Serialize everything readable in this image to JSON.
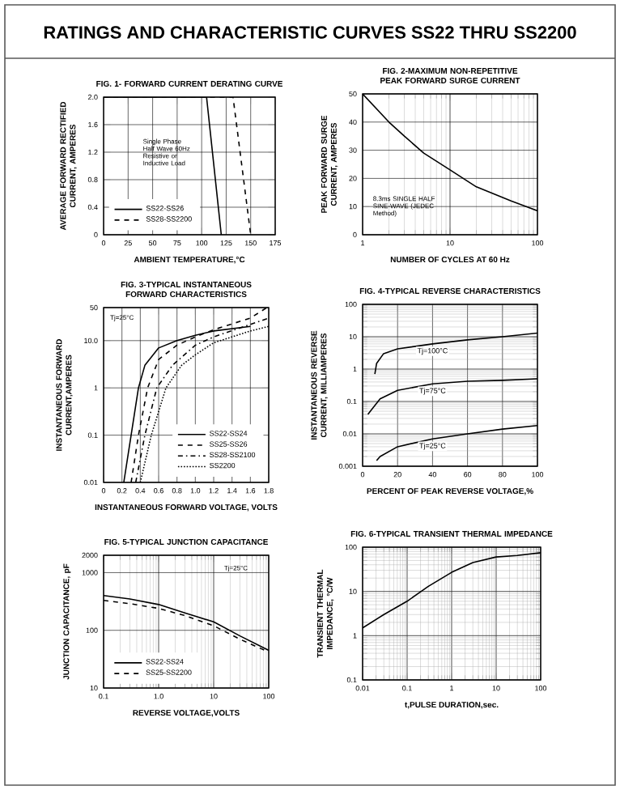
{
  "chart_data": [
    {
      "type": "line",
      "title": "FIG. 1- FORWARD CURRENT DERATING CURVE",
      "xlabel": "AMBIENT TEMPERATURE,°C",
      "ylabel": "AVERAGE FORWARD RECTIFIED CURRENT, AMPERES",
      "xlim": [
        0,
        175
      ],
      "xticks": [
        0,
        25,
        50,
        75,
        100,
        125,
        150,
        175
      ],
      "ylim": [
        0,
        2.0
      ],
      "yticks": [
        0,
        0.4,
        0.8,
        1.2,
        1.6,
        {
          "value": 2.0,
          "label": "2.0"
        }
      ],
      "grid": true,
      "legend": "bottom left",
      "annotations": [
        "RATINGS AND CHARACTERISTIC CURVES SS22 THRU SS2200",
        "Single Phase Half Wave 60Hz Resistive or Inductive Load"
      ],
      "series": [
        {
          "name": "SS22-SS26",
          "color": "#000000",
          "line_style": "solid",
          "x": [
            0,
            105,
            120
          ],
          "values": [
            2.0,
            2.0,
            0
          ]
        },
        {
          "name": "SS28-SS2200",
          "color": "#000000",
          "line_style": "dashed",
          "x": [
            0,
            132,
            150
          ],
          "values": [
            2.0,
            2.0,
            0
          ]
        }
      ]
    },
    {
      "type": "line",
      "title": "FIG. 2-MAXIMUM NON-REPETITIVE PEAK FORWARD SURGE CURRENT",
      "xlabel": "NUMBER OF CYCLES AT 60 Hz",
      "ylabel": "PEAK FORWARD SURGE CURRENT, AMPERES",
      "log": "x",
      "xlim": [
        1,
        100
      ],
      "xticks": [
        1,
        10,
        100
      ],
      "ylim": [
        0,
        50
      ],
      "yticks": [
        0,
        10,
        20,
        30,
        40,
        50
      ],
      "grid": true,
      "annotations": [
        "8.3ms SINGLE HALF SINE-WAVE (JEDEC Method)"
      ],
      "series": [
        {
          "color": "#000000",
          "line_style": "solid",
          "x": [
            1,
            2,
            3,
            5,
            10,
            20,
            50,
            100
          ],
          "values": [
            50,
            40,
            35,
            29,
            23,
            17,
            12,
            8.5
          ]
        }
      ]
    },
    {
      "type": "line",
      "title": "FIG. 3-TYPICAL INSTANTANEOUS FORWARD CHARACTERISTICS",
      "xlabel": "INSTANTANEOUS FORWARD VOLTAGE, VOLTS",
      "ylabel": "INSTANTANEOUS FORWARD CURRENT,AMPERES",
      "log": "y",
      "xlim": [
        0,
        1.8
      ],
      "xticks": [
        0,
        0.2,
        0.4,
        0.6,
        0.8,
        {
          "value": 1,
          "label": "1.0"
        },
        1.2,
        1.4,
        1.6,
        1.8
      ],
      "ylim": [
        0.01,
        50
      ],
      "yticks": [
        0.01,
        0.1,
        1,
        {
          "value": 10,
          "label": "10.0"
        },
        50
      ],
      "grid": true,
      "legend": "bottom right",
      "annotations": [
        "Tj=25°C"
      ],
      "series": [
        {
          "name": "SS22-SS24",
          "color": "#000000",
          "line_style": "solid",
          "x": [
            0.22,
            0.3,
            0.38,
            0.45,
            0.6,
            0.8,
            1.0,
            1.2,
            1.6
          ],
          "values": [
            0.01,
            0.1,
            1,
            3,
            7,
            10,
            13,
            16,
            20
          ]
        },
        {
          "name": "SS25-SS26",
          "color": "#000000",
          "line_style": "dashed",
          "x": [
            0.3,
            0.38,
            0.48,
            0.6,
            0.8,
            1.0,
            1.2,
            1.6,
            1.78
          ],
          "values": [
            0.01,
            0.1,
            1,
            4,
            8,
            12,
            17,
            30,
            50
          ]
        },
        {
          "name": "SS28-SS2100",
          "color": "#000000",
          "line_style": "dashdot",
          "x": [
            0.35,
            0.45,
            0.58,
            0.75,
            1.0,
            1.2,
            1.6,
            1.8
          ],
          "values": [
            0.01,
            0.1,
            1,
            3,
            8,
            12,
            22,
            30
          ]
        },
        {
          "name": "SS2200",
          "color": "#000000",
          "line_style": "dotted",
          "x": [
            0.4,
            0.52,
            0.68,
            0.85,
            1.0,
            1.2,
            1.6,
            1.8
          ],
          "values": [
            0.01,
            0.1,
            1,
            3,
            5,
            9,
            16,
            20
          ]
        }
      ]
    },
    {
      "type": "line",
      "title": "FIG. 4-TYPICAL REVERSE CHARACTERISTICS",
      "xlabel": "PERCENT OF PEAK REVERSE VOLTAGE,%",
      "ylabel": "INSTANTANEOUS REVERSE CURRENT, MILLIAMPERES",
      "log": "y",
      "xlim": [
        0,
        100
      ],
      "xticks": [
        0,
        20,
        40,
        60,
        80,
        100
      ],
      "ylim": [
        0.001,
        100
      ],
      "yticks": [
        0.001,
        0.01,
        0.1,
        1,
        10,
        100
      ],
      "grid": true,
      "series": [
        {
          "name": "Tj=100°C",
          "color": "#000000",
          "line_style": "solid",
          "x": [
            7,
            8,
            12,
            20,
            40,
            60,
            80,
            100
          ],
          "values": [
            0.7,
            1.5,
            3,
            4.2,
            6,
            8,
            10,
            13
          ]
        },
        {
          "name": "Tj=75°C",
          "color": "#000000",
          "line_style": "solid",
          "x": [
            3,
            10,
            20,
            40,
            60,
            80,
            100
          ],
          "values": [
            0.04,
            0.12,
            0.22,
            0.35,
            0.42,
            0.45,
            0.5
          ]
        },
        {
          "name": "Tj=25°C",
          "color": "#000000",
          "line_style": "solid",
          "x": [
            8,
            10,
            20,
            40,
            60,
            80,
            100
          ],
          "values": [
            0.0015,
            0.002,
            0.004,
            0.007,
            0.01,
            0.014,
            0.018
          ]
        }
      ]
    },
    {
      "type": "line",
      "title": "FIG. 5-TYPICAL JUNCTION CAPACITANCE",
      "xlabel": "REVERSE VOLTAGE,VOLTS",
      "ylabel": "JUNCTION CAPACITANCE, pF",
      "log": "xy",
      "xlim": [
        0.1,
        100
      ],
      "xticks": [
        0.1,
        {
          "value": 1,
          "label": "1.0"
        },
        10,
        100
      ],
      "ylim": [
        10,
        2000
      ],
      "yticks": [
        10,
        100,
        1000,
        2000
      ],
      "grid": true,
      "legend": "bottom left",
      "annotations": [
        "Tj=25°C"
      ],
      "series": [
        {
          "name": "SS22-SS24",
          "color": "#000000",
          "line_style": "solid",
          "x": [
            0.1,
            0.3,
            1,
            3,
            10,
            30,
            100
          ],
          "values": [
            400,
            350,
            280,
            200,
            140,
            80,
            45
          ]
        },
        {
          "name": "SS25-SS2200",
          "color": "#000000",
          "line_style": "dashed",
          "x": [
            0.1,
            0.3,
            1,
            3,
            10,
            30,
            100
          ],
          "values": [
            330,
            290,
            240,
            180,
            120,
            70,
            42
          ]
        }
      ]
    },
    {
      "type": "line",
      "title": "FIG. 6-TYPICAL TRANSIENT THERMAL IMPEDANCE",
      "xlabel": "t,PULSE DURATION,sec.",
      "ylabel": "TRANSIENT THERMAL IMPEDANCE, °C/W",
      "log": "xy",
      "xlim": [
        0.01,
        100
      ],
      "xticks": [
        0.01,
        0.1,
        1,
        10,
        100
      ],
      "ylim": [
        0.1,
        100
      ],
      "yticks": [
        0.1,
        1,
        10,
        100
      ],
      "grid": true,
      "series": [
        {
          "color": "#000000",
          "line_style": "solid",
          "x": [
            0.01,
            0.03,
            0.1,
            0.3,
            1,
            3,
            10,
            30,
            100
          ],
          "values": [
            1.5,
            3,
            6,
            13,
            27,
            45,
            60,
            65,
            75
          ]
        }
      ]
    }
  ]
}
